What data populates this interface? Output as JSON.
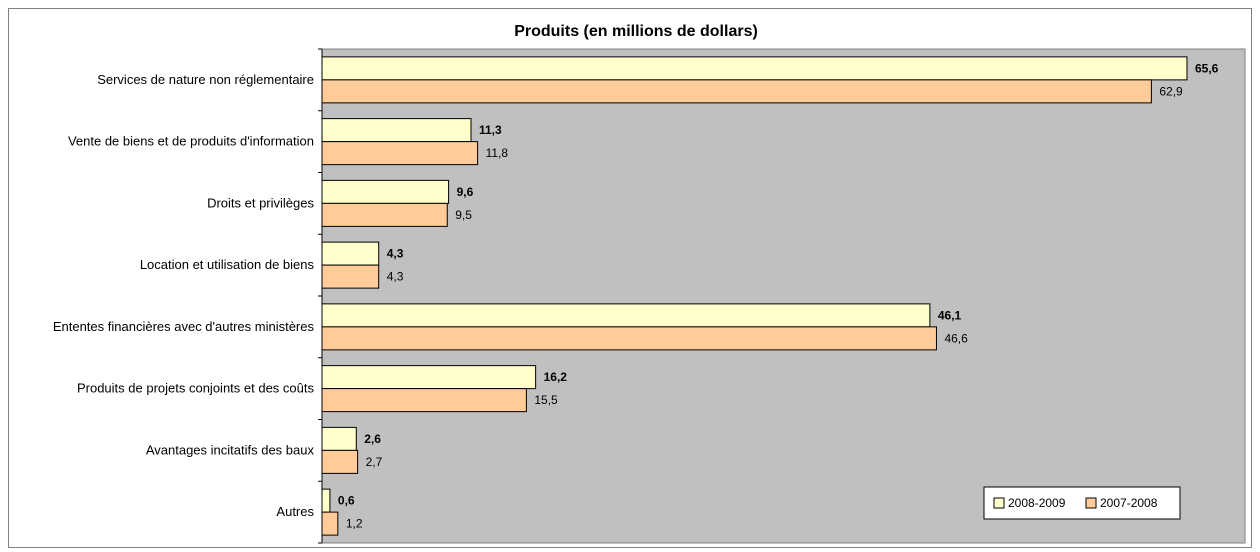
{
  "chart_data": {
    "type": "bar",
    "orientation": "horizontal",
    "title": "Produits (en millions de dollars)",
    "categories": [
      "Services de nature non réglementaire",
      "Vente de biens et de produits d'information",
      "Droits et privilèges",
      "Location et utilisation de biens",
      "Ententes financières avec d'autres ministères",
      "Produits de projets conjoints et des coûts",
      "Avantages incitatifs des baux",
      "Autres"
    ],
    "series": [
      {
        "name": "2008-2009",
        "values": [
          65.6,
          11.3,
          9.6,
          4.3,
          46.1,
          16.2,
          2.6,
          0.6
        ],
        "labels": [
          "65,6",
          "11,3",
          "9,6",
          "4,3",
          "46,1",
          "16,2",
          "2,6",
          "0,6"
        ],
        "color": "#FFFFCC"
      },
      {
        "name": "2007-2008",
        "values": [
          62.9,
          11.8,
          9.5,
          4.3,
          46.6,
          15.5,
          2.7,
          1.2
        ],
        "labels": [
          "62,9",
          "11,8",
          "9,5",
          "4,3",
          "46,6",
          "15,5",
          "2,7",
          "1,2"
        ],
        "color": "#FFCC99"
      }
    ],
    "xlim": [
      0,
      70
    ],
    "grid": false,
    "legend_position": "bottom-right",
    "plot_background": "#C0C0C0"
  }
}
